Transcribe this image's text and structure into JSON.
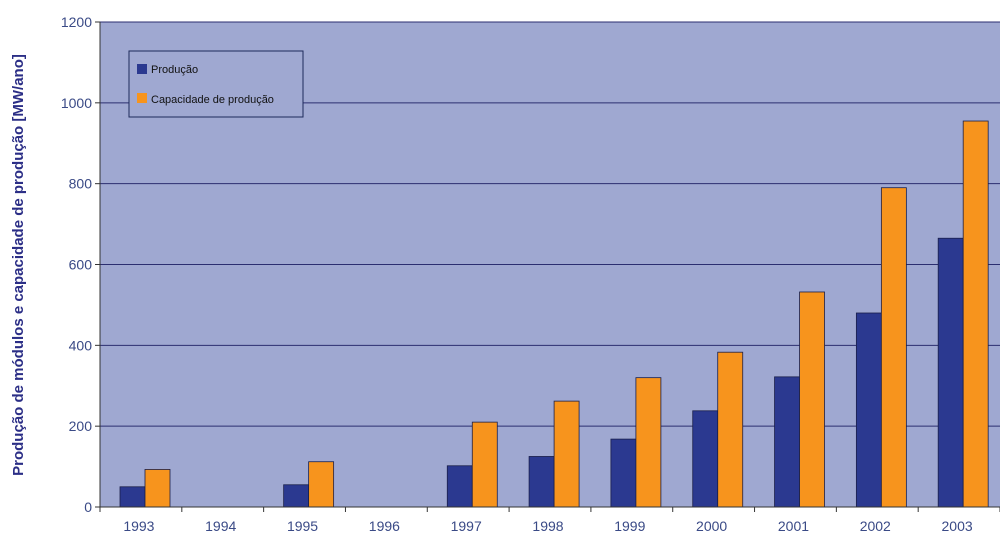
{
  "chart_data": {
    "type": "bar",
    "title": "",
    "xlabel": "",
    "ylabel": "Produção de módulos e capacidade de produção [MW/ano]",
    "ylim": [
      0,
      1200
    ],
    "yticks": [
      0,
      200,
      400,
      600,
      800,
      1000,
      1200
    ],
    "grid": true,
    "legend_position": "top-left",
    "categories": [
      "1993",
      "1994",
      "1995",
      "1996",
      "1997",
      "1998",
      "1999",
      "2000",
      "2001",
      "2002",
      "2003"
    ],
    "series": [
      {
        "name": "Produção",
        "color": "#2b3990",
        "values": [
          50,
          0,
          55,
          0,
          102,
          125,
          168,
          238,
          322,
          480,
          665
        ]
      },
      {
        "name": "Capacidade de produção",
        "color": "#f7941d",
        "values": [
          93,
          0,
          112,
          0,
          210,
          262,
          320,
          383,
          532,
          790,
          955
        ]
      }
    ],
    "colors": {
      "plot_background": "#9fa8d1",
      "grid": "#2b2e70",
      "axis_text": "#3a4a86",
      "ylabel": "#2b2e86"
    }
  }
}
